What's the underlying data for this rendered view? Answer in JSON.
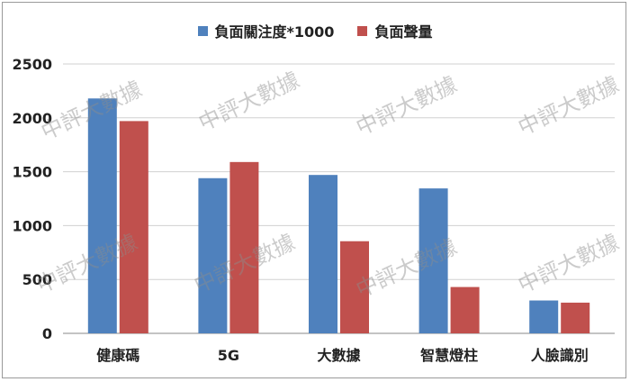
{
  "chart_data": {
    "type": "bar",
    "categories": [
      "健康碼",
      "5G",
      "大數據",
      "智慧燈柱",
      "人臉識別"
    ],
    "series": [
      {
        "name": "負面關注度*1000",
        "color": "#4F81BD",
        "values": [
          2180,
          1440,
          1470,
          1345,
          305
        ]
      },
      {
        "name": "負面聲量",
        "color": "#C0504D",
        "values": [
          1970,
          1590,
          855,
          430,
          285
        ]
      }
    ],
    "title": "",
    "xlabel": "",
    "ylabel": "",
    "ylim": [
      0,
      2500
    ],
    "yticks": [
      0,
      500,
      1000,
      1500,
      2000,
      2500
    ],
    "grid": true,
    "legend_position": "top",
    "watermark": "中評大數據"
  }
}
